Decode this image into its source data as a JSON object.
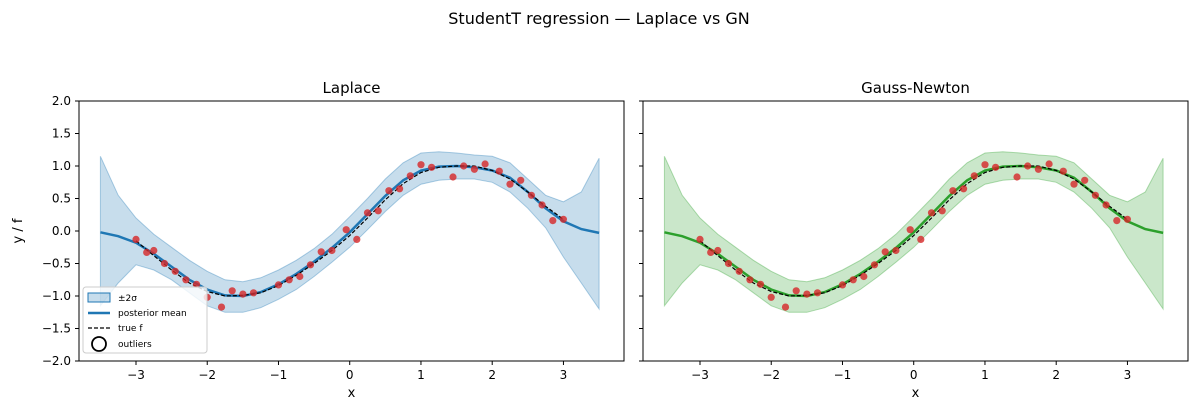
{
  "figure_title": "StudentT regression — Laplace vs GN",
  "colors": {
    "laplace_band": "#1f77b4",
    "laplace_mean": "#1f77b4",
    "gn_band": "#2ca02c",
    "gn_mean": "#2ca02c",
    "points": "#d62728",
    "true_f": "#000000"
  },
  "legend": {
    "band": "±2σ",
    "mean": "posterior mean",
    "true": "true f",
    "outliers": "outliers"
  },
  "chart_data": [
    {
      "type": "line",
      "title": "Laplace",
      "xlabel": "x",
      "ylabel": "y / f",
      "xlim": [
        -3.8,
        3.85
      ],
      "ylim": [
        -2.0,
        2.0
      ],
      "xticks": [
        -3,
        -2,
        -1,
        0,
        1,
        2,
        3
      ],
      "yticks": [
        -2.0,
        -1.5,
        -1.0,
        -0.5,
        0.0,
        0.5,
        1.0,
        1.5,
        2.0
      ],
      "grid": false,
      "legend_position": "lower-left",
      "x": [
        -3.5,
        -3.25,
        -3.0,
        -2.75,
        -2.5,
        -2.25,
        -2.0,
        -1.75,
        -1.5,
        -1.25,
        -1.0,
        -0.75,
        -0.5,
        -0.25,
        0.0,
        0.25,
        0.5,
        0.75,
        1.0,
        1.25,
        1.5,
        1.75,
        2.0,
        2.25,
        2.5,
        2.75,
        3.0,
        3.25,
        3.5
      ],
      "series": [
        {
          "role": "band_upper",
          "values": [
            1.15,
            0.55,
            0.2,
            -0.05,
            -0.25,
            -0.45,
            -0.62,
            -0.75,
            -0.78,
            -0.72,
            -0.6,
            -0.45,
            -0.27,
            -0.05,
            0.22,
            0.5,
            0.8,
            1.05,
            1.2,
            1.22,
            1.2,
            1.17,
            1.15,
            1.05,
            0.8,
            0.55,
            0.45,
            0.6,
            1.12
          ]
        },
        {
          "role": "band_lower",
          "values": [
            -1.15,
            -0.8,
            -0.52,
            -0.6,
            -0.75,
            -0.95,
            -1.15,
            -1.25,
            -1.25,
            -1.18,
            -1.05,
            -0.9,
            -0.7,
            -0.48,
            -0.25,
            0.02,
            0.3,
            0.55,
            0.72,
            0.78,
            0.8,
            0.8,
            0.75,
            0.6,
            0.35,
            0.05,
            -0.4,
            -0.8,
            -1.2
          ]
        },
        {
          "role": "posterior_mean",
          "values": [
            -0.02,
            -0.08,
            -0.18,
            -0.35,
            -0.55,
            -0.75,
            -0.9,
            -0.99,
            -1.0,
            -0.94,
            -0.82,
            -0.66,
            -0.47,
            -0.26,
            -0.02,
            0.26,
            0.54,
            0.78,
            0.93,
            0.99,
            1.0,
            0.98,
            0.93,
            0.82,
            0.6,
            0.35,
            0.15,
            0.03,
            -0.03
          ]
        },
        {
          "role": "true_f",
          "values": [
            null,
            null,
            -0.15,
            -0.38,
            -0.6,
            -0.8,
            -0.93,
            -1.0,
            -0.99,
            -0.95,
            -0.84,
            -0.68,
            -0.5,
            -0.3,
            -0.07,
            0.2,
            0.48,
            0.73,
            0.9,
            0.98,
            1.0,
            1.0,
            0.93,
            0.8,
            0.6,
            0.38,
            0.18,
            null,
            null
          ]
        }
      ],
      "points": [
        [
          -3.0,
          -0.13
        ],
        [
          -2.85,
          -0.33
        ],
        [
          -2.75,
          -0.3
        ],
        [
          -2.6,
          -0.5
        ],
        [
          -2.45,
          -0.62
        ],
        [
          -2.3,
          -0.75
        ],
        [
          -2.15,
          -0.82
        ],
        [
          -2.0,
          -1.02
        ],
        [
          -1.8,
          -1.17
        ],
        [
          -1.65,
          -0.92
        ],
        [
          -1.5,
          -0.97
        ],
        [
          -1.35,
          -0.95
        ],
        [
          -1.0,
          -0.83
        ],
        [
          -0.85,
          -0.75
        ],
        [
          -0.7,
          -0.7
        ],
        [
          -0.55,
          -0.52
        ],
        [
          -0.4,
          -0.32
        ],
        [
          -0.25,
          -0.3
        ],
        [
          -0.05,
          0.02
        ],
        [
          0.1,
          -0.13
        ],
        [
          0.25,
          0.28
        ],
        [
          0.4,
          0.31
        ],
        [
          0.55,
          0.62
        ],
        [
          0.7,
          0.65
        ],
        [
          0.85,
          0.85
        ],
        [
          1.0,
          1.02
        ],
        [
          1.15,
          0.98
        ],
        [
          1.45,
          0.83
        ],
        [
          1.6,
          1.0
        ],
        [
          1.75,
          0.95
        ],
        [
          1.9,
          1.03
        ],
        [
          2.1,
          0.92
        ],
        [
          2.25,
          0.72
        ],
        [
          2.4,
          0.78
        ],
        [
          2.55,
          0.55
        ],
        [
          2.7,
          0.4
        ],
        [
          2.85,
          0.16
        ],
        [
          3.0,
          0.18
        ]
      ]
    },
    {
      "type": "line",
      "title": "Gauss-Newton",
      "xlabel": "x",
      "ylabel": "",
      "xlim": [
        -3.8,
        3.85
      ],
      "ylim": [
        -2.0,
        2.0
      ],
      "xticks": [
        -3,
        -2,
        -1,
        0,
        1,
        2,
        3
      ],
      "yticks": [
        -2.0,
        -1.5,
        -1.0,
        -0.5,
        0.0,
        0.5,
        1.0,
        1.5,
        2.0
      ],
      "grid": false,
      "x": [
        -3.5,
        -3.25,
        -3.0,
        -2.75,
        -2.5,
        -2.25,
        -2.0,
        -1.75,
        -1.5,
        -1.25,
        -1.0,
        -0.75,
        -0.5,
        -0.25,
        0.0,
        0.25,
        0.5,
        0.75,
        1.0,
        1.25,
        1.5,
        1.75,
        2.0,
        2.25,
        2.5,
        2.75,
        3.0,
        3.25,
        3.5
      ],
      "series": [
        {
          "role": "band_upper",
          "values": [
            1.15,
            0.55,
            0.2,
            -0.05,
            -0.25,
            -0.45,
            -0.62,
            -0.75,
            -0.78,
            -0.72,
            -0.6,
            -0.45,
            -0.27,
            -0.05,
            0.22,
            0.5,
            0.8,
            1.05,
            1.2,
            1.22,
            1.2,
            1.17,
            1.15,
            1.05,
            0.8,
            0.55,
            0.45,
            0.6,
            1.12
          ]
        },
        {
          "role": "band_lower",
          "values": [
            -1.15,
            -0.8,
            -0.52,
            -0.6,
            -0.75,
            -0.95,
            -1.15,
            -1.25,
            -1.25,
            -1.18,
            -1.05,
            -0.9,
            -0.7,
            -0.48,
            -0.25,
            0.02,
            0.3,
            0.55,
            0.72,
            0.78,
            0.8,
            0.8,
            0.75,
            0.6,
            0.35,
            0.05,
            -0.4,
            -0.8,
            -1.2
          ]
        },
        {
          "role": "posterior_mean",
          "values": [
            -0.02,
            -0.08,
            -0.18,
            -0.35,
            -0.55,
            -0.75,
            -0.9,
            -0.99,
            -1.0,
            -0.94,
            -0.82,
            -0.66,
            -0.47,
            -0.26,
            -0.02,
            0.26,
            0.54,
            0.78,
            0.93,
            0.99,
            1.0,
            0.98,
            0.93,
            0.82,
            0.6,
            0.35,
            0.15,
            0.03,
            -0.03
          ]
        },
        {
          "role": "true_f",
          "values": [
            null,
            null,
            -0.15,
            -0.38,
            -0.6,
            -0.8,
            -0.93,
            -1.0,
            -0.99,
            -0.95,
            -0.84,
            -0.68,
            -0.5,
            -0.3,
            -0.07,
            0.2,
            0.48,
            0.73,
            0.9,
            0.98,
            1.0,
            1.0,
            0.93,
            0.8,
            0.6,
            0.38,
            0.18,
            null,
            null
          ]
        }
      ],
      "points": [
        [
          -3.0,
          -0.13
        ],
        [
          -2.85,
          -0.33
        ],
        [
          -2.75,
          -0.3
        ],
        [
          -2.6,
          -0.5
        ],
        [
          -2.45,
          -0.62
        ],
        [
          -2.3,
          -0.75
        ],
        [
          -2.15,
          -0.82
        ],
        [
          -2.0,
          -1.02
        ],
        [
          -1.8,
          -1.17
        ],
        [
          -1.65,
          -0.92
        ],
        [
          -1.5,
          -0.97
        ],
        [
          -1.35,
          -0.95
        ],
        [
          -1.0,
          -0.83
        ],
        [
          -0.85,
          -0.75
        ],
        [
          -0.7,
          -0.7
        ],
        [
          -0.55,
          -0.52
        ],
        [
          -0.4,
          -0.32
        ],
        [
          -0.25,
          -0.3
        ],
        [
          -0.05,
          0.02
        ],
        [
          0.1,
          -0.13
        ],
        [
          0.25,
          0.28
        ],
        [
          0.4,
          0.31
        ],
        [
          0.55,
          0.62
        ],
        [
          0.7,
          0.65
        ],
        [
          0.85,
          0.85
        ],
        [
          1.0,
          1.02
        ],
        [
          1.15,
          0.98
        ],
        [
          1.45,
          0.83
        ],
        [
          1.6,
          1.0
        ],
        [
          1.75,
          0.95
        ],
        [
          1.9,
          1.03
        ],
        [
          2.1,
          0.92
        ],
        [
          2.25,
          0.72
        ],
        [
          2.4,
          0.78
        ],
        [
          2.55,
          0.55
        ],
        [
          2.7,
          0.4
        ],
        [
          2.85,
          0.16
        ],
        [
          3.0,
          0.18
        ]
      ]
    }
  ]
}
